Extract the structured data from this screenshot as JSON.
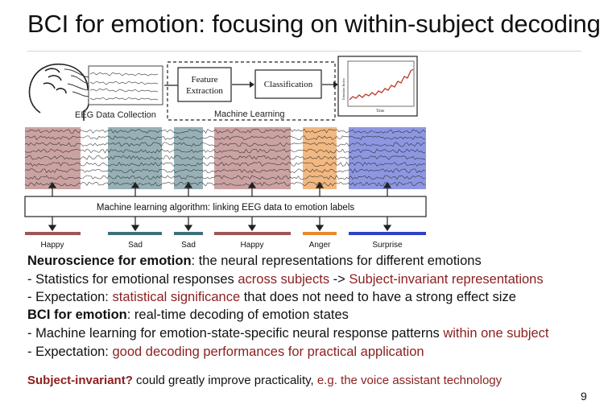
{
  "slide": {
    "title": "BCI for emotion: focusing on within-subject decoding",
    "page_number": "9"
  },
  "figure": {
    "eeg_caption": "EEG Data Collection",
    "feature_box": [
      "Feature",
      "Extraction"
    ],
    "classification_box": "Classification",
    "ml_caption": "Machine Learning",
    "plot_ylabel": "Emotion Index",
    "plot_xlabel": "Time",
    "algo_box": "Machine learning algorithm: linking EEG data to emotion labels",
    "labels": [
      {
        "text": "Happy",
        "color": "#a05656"
      },
      {
        "text": "Sad",
        "color": "#3f6f7a"
      },
      {
        "text": "Sad",
        "color": "#3f6f7a"
      },
      {
        "text": "Happy",
        "color": "#a05656"
      },
      {
        "text": "Anger",
        "color": "#e8892d"
      },
      {
        "text": "Surprise",
        "color": "#2f42c8"
      }
    ]
  },
  "body": {
    "l1_bold": "Neuroscience for emotion",
    "l1_rest": ": the neural representations for different emotions",
    "l2_a": "- Statistics for emotional responses ",
    "l2_b": "across subjects",
    "l2_c": " -> ",
    "l2_d": "Subject-invariant representations",
    "l3_a": "- Expectation: ",
    "l3_b": "statistical significance",
    "l3_c": " that does not need to have a strong effect size",
    "l4_bold": "BCI for emotion",
    "l4_rest": ": real-time decoding of emotion states",
    "l5_a": "- Machine learning for emotion-state-specific neural response patterns ",
    "l5_b": "within one subject",
    "l6_a": "- Expectation: ",
    "l6_b": "good decoding performances for practical application",
    "l7_a": "Subject-invariant?",
    "l7_b": " could greatly improve practicality, ",
    "l7_c": "e.g. the voice assistant technology"
  },
  "colors": {
    "accent_red": "#8b1e1e",
    "happy": "#a05656",
    "sad": "#3f6f7a",
    "anger": "#e8892d",
    "surprise": "#2f42c8"
  }
}
